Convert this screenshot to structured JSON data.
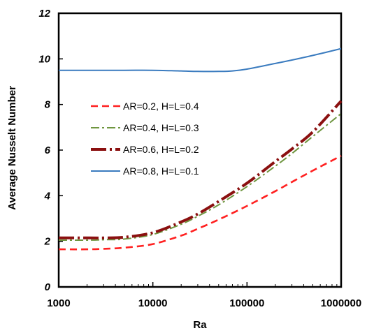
{
  "chart_data": {
    "type": "line",
    "title": "",
    "xlabel": "Ra",
    "ylabel": "Average Nusselt Number",
    "x_scale": "log",
    "xlim": [
      1000,
      1000000
    ],
    "ylim": [
      0,
      12
    ],
    "x_ticks": [
      "1000",
      "10000",
      "100000",
      "1000000"
    ],
    "y_ticks": [
      "0",
      "2",
      "4",
      "6",
      "8",
      "10",
      "12"
    ],
    "grid": false,
    "legend_position": "left-center",
    "series": [
      {
        "name": "AR=0.2, H=L=0.4",
        "color": "#ff2020",
        "style": "dashed",
        "x": [
          1000,
          2000,
          3000,
          5000,
          10000,
          20000,
          30000,
          50000,
          100000,
          200000,
          300000,
          500000,
          1000000
        ],
        "y": [
          1.65,
          1.65,
          1.67,
          1.72,
          1.88,
          2.25,
          2.55,
          2.95,
          3.55,
          4.2,
          4.6,
          5.1,
          5.75
        ]
      },
      {
        "name": "AR=0.4, H=L=0.3",
        "color": "#6f9640",
        "style": "dashdot",
        "x": [
          1000,
          2000,
          3000,
          5000,
          10000,
          20000,
          30000,
          50000,
          100000,
          200000,
          300000,
          500000,
          1000000
        ],
        "y": [
          2.05,
          2.05,
          2.07,
          2.1,
          2.3,
          2.75,
          3.1,
          3.6,
          4.4,
          5.3,
          5.85,
          6.6,
          7.6
        ]
      },
      {
        "name": "AR=0.6, H=L=0.2",
        "color": "#8b1010",
        "style": "longdash",
        "x": [
          1000,
          2000,
          3000,
          5000,
          10000,
          20000,
          30000,
          50000,
          100000,
          200000,
          300000,
          500000,
          1000000
        ],
        "y": [
          2.15,
          2.15,
          2.15,
          2.18,
          2.38,
          2.85,
          3.2,
          3.75,
          4.55,
          5.5,
          6.05,
          6.8,
          8.15
        ]
      },
      {
        "name": "AR=0.8, H=L=0.1",
        "color": "#3a7bbf",
        "style": "solid",
        "x": [
          1000,
          2000,
          5000,
          10000,
          20000,
          30000,
          50000,
          70000,
          100000,
          200000,
          300000,
          500000,
          1000000
        ],
        "y": [
          9.5,
          9.5,
          9.5,
          9.5,
          9.47,
          9.45,
          9.45,
          9.47,
          9.55,
          9.8,
          9.95,
          10.15,
          10.45
        ]
      }
    ]
  }
}
